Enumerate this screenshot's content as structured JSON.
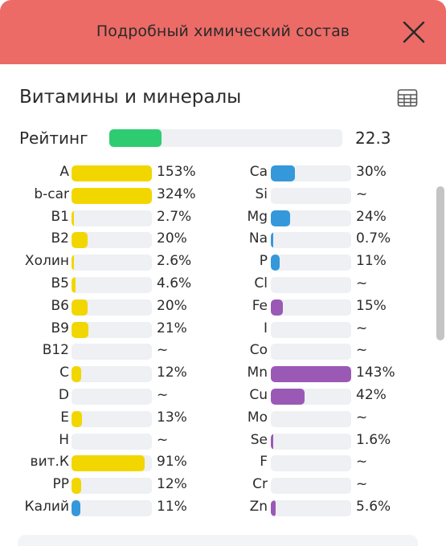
{
  "header": {
    "title": "Подробный химический состав",
    "close_icon": "close-icon"
  },
  "section": {
    "title": "Витамины и минералы",
    "table_icon": "table-grid-icon"
  },
  "rating": {
    "label": "Рейтинг",
    "value": "22.3",
    "fraction": 0.223,
    "color": "#2ecc71"
  },
  "colors": {
    "yellow": "#f2d600",
    "blue": "#3498db",
    "purple": "#9b59b6",
    "header": "#ec6b66",
    "track": "#eef0f3"
  },
  "left_column": [
    {
      "label": "A",
      "value": "153%",
      "fraction": 1.0,
      "color": "#f2d600"
    },
    {
      "label": "b-car",
      "value": "324%",
      "fraction": 1.0,
      "color": "#f2d600"
    },
    {
      "label": "B1",
      "value": "2.7%",
      "fraction": 0.027,
      "color": "#f2d600"
    },
    {
      "label": "B2",
      "value": "20%",
      "fraction": 0.2,
      "color": "#f2d600"
    },
    {
      "label": "Холин",
      "value": "2.6%",
      "fraction": 0.026,
      "color": "#f2d600"
    },
    {
      "label": "B5",
      "value": "4.6%",
      "fraction": 0.046,
      "color": "#f2d600"
    },
    {
      "label": "B6",
      "value": "20%",
      "fraction": 0.2,
      "color": "#f2d600"
    },
    {
      "label": "B9",
      "value": "21%",
      "fraction": 0.21,
      "color": "#f2d600"
    },
    {
      "label": "B12",
      "value": "~",
      "fraction": 0,
      "color": "#f2d600"
    },
    {
      "label": "C",
      "value": "12%",
      "fraction": 0.12,
      "color": "#f2d600"
    },
    {
      "label": "D",
      "value": "~",
      "fraction": 0,
      "color": "#f2d600"
    },
    {
      "label": "E",
      "value": "13%",
      "fraction": 0.13,
      "color": "#f2d600"
    },
    {
      "label": "H",
      "value": "~",
      "fraction": 0,
      "color": "#f2d600"
    },
    {
      "label": "вит.К",
      "value": "91%",
      "fraction": 0.91,
      "color": "#f2d600"
    },
    {
      "label": "PP",
      "value": "12%",
      "fraction": 0.12,
      "color": "#f2d600"
    },
    {
      "label": "Калий",
      "value": "11%",
      "fraction": 0.11,
      "color": "#3498db"
    }
  ],
  "right_column": [
    {
      "label": "Ca",
      "value": "30%",
      "fraction": 0.3,
      "color": "#3498db"
    },
    {
      "label": "Si",
      "value": "~",
      "fraction": 0,
      "color": "#3498db"
    },
    {
      "label": "Mg",
      "value": "24%",
      "fraction": 0.24,
      "color": "#3498db"
    },
    {
      "label": "Na",
      "value": "0.7%",
      "fraction": 0.007,
      "color": "#3498db"
    },
    {
      "label": "P",
      "value": "11%",
      "fraction": 0.11,
      "color": "#3498db"
    },
    {
      "label": "Cl",
      "value": "~",
      "fraction": 0,
      "color": "#3498db"
    },
    {
      "label": "Fe",
      "value": "15%",
      "fraction": 0.15,
      "color": "#9b59b6"
    },
    {
      "label": "I",
      "value": "~",
      "fraction": 0,
      "color": "#9b59b6"
    },
    {
      "label": "Co",
      "value": "~",
      "fraction": 0,
      "color": "#9b59b6"
    },
    {
      "label": "Mn",
      "value": "143%",
      "fraction": 1.0,
      "color": "#9b59b6"
    },
    {
      "label": "Cu",
      "value": "42%",
      "fraction": 0.42,
      "color": "#9b59b6"
    },
    {
      "label": "Mo",
      "value": "~",
      "fraction": 0,
      "color": "#9b59b6"
    },
    {
      "label": "Se",
      "value": "1.6%",
      "fraction": 0.016,
      "color": "#9b59b6"
    },
    {
      "label": "F",
      "value": "~",
      "fraction": 0,
      "color": "#9b59b6"
    },
    {
      "label": "Cr",
      "value": "~",
      "fraction": 0,
      "color": "#9b59b6"
    },
    {
      "label": "Zn",
      "value": "5.6%",
      "fraction": 0.056,
      "color": "#9b59b6"
    }
  ]
}
